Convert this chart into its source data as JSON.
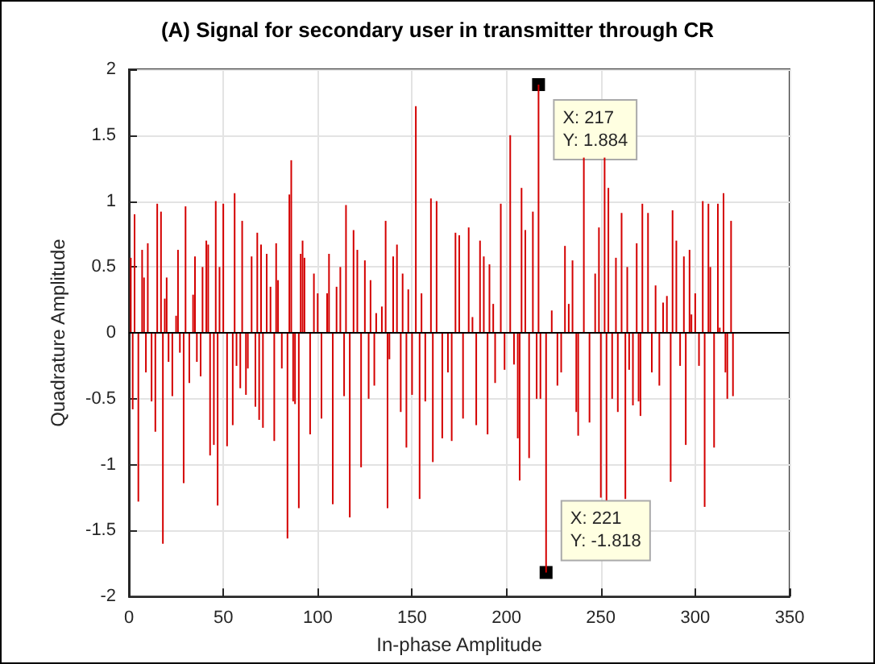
{
  "chart_data": {
    "type": "bar",
    "title": "(A) Signal for secondary user in transmitter through CR",
    "xlabel": "In-phase Amplitude",
    "ylabel": "Quadrature Amplitude",
    "xlim": [
      0,
      350
    ],
    "xticks": [
      0,
      50,
      100,
      150,
      200,
      250,
      300,
      350
    ],
    "ylim": [
      -2,
      2
    ],
    "yticks": [
      -2,
      -1.5,
      -1,
      -0.5,
      0,
      0.5,
      1,
      1.5,
      2
    ],
    "grid": true,
    "ref_lines": [
      {
        "axis": "y",
        "value": 0,
        "color": "#000000"
      }
    ],
    "annotations": [
      {
        "text": "X: 217\nY: 1.884",
        "x": 217,
        "y": 1.884
      },
      {
        "text": "X: 221\nY: -1.818",
        "x": 221,
        "y": -1.818
      }
    ],
    "series": [
      {
        "color": "#d40000",
        "x": [
          1,
          2,
          3,
          5,
          7,
          8,
          9,
          10,
          12,
          14,
          15,
          17,
          18,
          19,
          20,
          21,
          23,
          25,
          26,
          27,
          29,
          30,
          32,
          34,
          35,
          36,
          38,
          39,
          41,
          42,
          43,
          45,
          46,
          47,
          48,
          50,
          52,
          55,
          56,
          57,
          59,
          60,
          62,
          63,
          65,
          67,
          68,
          69,
          70,
          71,
          73,
          75,
          77,
          78,
          79,
          81,
          84,
          85,
          86,
          87,
          88,
          90,
          91,
          92,
          93,
          96,
          98,
          100,
          102,
          105,
          106,
          108,
          110,
          112,
          114,
          115,
          117,
          119,
          121,
          123,
          125,
          127,
          128,
          130,
          131,
          134,
          136,
          137,
          138,
          140,
          142,
          144,
          145,
          147,
          148,
          150,
          152,
          154,
          155,
          157,
          160,
          161,
          163,
          166,
          169,
          171,
          173,
          175,
          177,
          180,
          182,
          184,
          186,
          188,
          190,
          191,
          193,
          194,
          197,
          199,
          202,
          204,
          206,
          207,
          208,
          210,
          212,
          214,
          216,
          217,
          218,
          221,
          224,
          227,
          229,
          231,
          233,
          235,
          237,
          238,
          241,
          244,
          247,
          249,
          250,
          252,
          253,
          254,
          256,
          258,
          259,
          261,
          263,
          264,
          265,
          267,
          269,
          270,
          271,
          272,
          275,
          277,
          279,
          281,
          283,
          285,
          287,
          288,
          290,
          292,
          294,
          295,
          297,
          298,
          300,
          302,
          304,
          305,
          307,
          308,
          310,
          312,
          313,
          315,
          316,
          317,
          319,
          320
        ],
        "values": [
          0.57,
          -0.58,
          0.9,
          -1.28,
          0.63,
          0.42,
          -0.3,
          0.68,
          -0.52,
          -0.75,
          0.98,
          0.92,
          -1.6,
          0.26,
          0.42,
          -0.22,
          -0.48,
          0.13,
          0.63,
          -0.15,
          -1.14,
          0.96,
          -0.38,
          0.29,
          0.58,
          -0.22,
          -0.33,
          0.5,
          0.7,
          0.67,
          -0.93,
          -0.85,
          1.0,
          -1.31,
          0.5,
          0.98,
          -0.86,
          -0.7,
          1.06,
          -0.25,
          -0.42,
          0.85,
          -0.47,
          -0.27,
          0.58,
          -0.56,
          0.76,
          -0.66,
          0.67,
          -0.72,
          0.6,
          0.35,
          -0.82,
          0.68,
          0.4,
          -0.27,
          -1.56,
          1.05,
          1.31,
          -0.52,
          -0.54,
          -1.33,
          0.6,
          0.7,
          0.57,
          -0.77,
          0.45,
          0.3,
          -0.65,
          0.3,
          0.6,
          -1.3,
          0.35,
          0.5,
          -0.48,
          0.97,
          -1.4,
          0.78,
          0.63,
          -1.02,
          0.55,
          -0.5,
          0.4,
          -0.4,
          0.15,
          0.2,
          0.85,
          -1.33,
          -0.2,
          0.58,
          0.67,
          -0.6,
          0.45,
          -0.87,
          0.33,
          -0.47,
          1.72,
          -1.26,
          0.3,
          -0.52,
          1.02,
          -0.98,
          1.0,
          -0.8,
          -0.3,
          -0.82,
          0.76,
          0.74,
          -0.65,
          0.8,
          0.12,
          -0.7,
          0.7,
          0.58,
          -0.77,
          0.52,
          0.22,
          -0.38,
          0.98,
          -0.28,
          1.5,
          -0.24,
          -0.8,
          -1.12,
          1.1,
          0.78,
          -0.95,
          0.92,
          -0.5,
          1.884,
          -0.5,
          -1.818,
          0.17,
          -0.4,
          -0.3,
          0.66,
          0.22,
          0.55,
          -0.6,
          -0.78,
          1.33,
          -0.68,
          0.45,
          0.8,
          -1.25,
          1.33,
          -1.27,
          1.1,
          -0.5,
          0.57,
          -0.6,
          0.91,
          -1.26,
          0.5,
          -0.28,
          -0.55,
          0.68,
          -0.52,
          -0.63,
          0.98,
          0.91,
          -0.3,
          0.36,
          -0.4,
          0.23,
          0.28,
          -1.13,
          0.93,
          0.7,
          -0.25,
          0.58,
          -0.85,
          0.63,
          0.14,
          0.3,
          -0.25,
          1.0,
          -1.32,
          0.98,
          0.5,
          -0.87,
          0.98,
          0.04,
          1.06,
          -0.3,
          -0.5,
          0.85,
          -0.48
        ]
      }
    ]
  }
}
